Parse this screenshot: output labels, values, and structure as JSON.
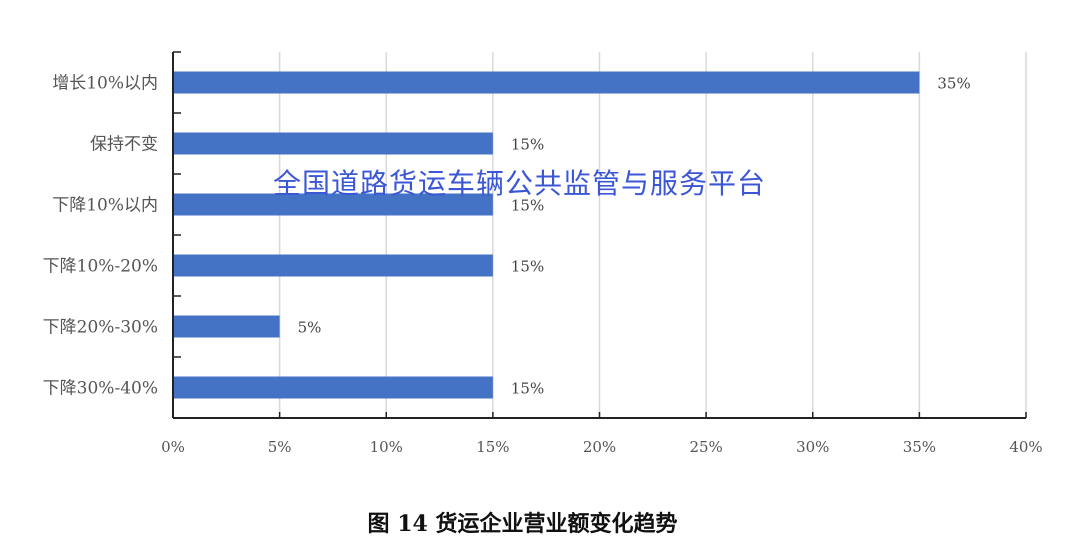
{
  "chart_data": {
    "type": "bar",
    "orientation": "horizontal",
    "categories": [
      "增长10%以内",
      "保持不变",
      "下降10%以内",
      "下降10%-20%",
      "下降20%-30%",
      "下降30%-40%"
    ],
    "values": [
      35,
      15,
      15,
      15,
      5,
      15
    ],
    "data_labels": [
      "35%",
      "15%",
      "15%",
      "15%",
      "5%",
      "15%"
    ],
    "xlim": [
      0,
      40
    ],
    "x_ticks": [
      0,
      5,
      10,
      15,
      20,
      25,
      30,
      35,
      40
    ],
    "x_tick_labels": [
      "0%",
      "5%",
      "10%",
      "15%",
      "20%",
      "25%",
      "30%",
      "35%",
      "40%"
    ],
    "grid": "vertical",
    "bar_color": "#4472c4",
    "title": "图 14 货运企业营业额变化趋势"
  },
  "watermark": "全国道路货运车辆公共监管与服务平台",
  "watermark_color": "#3b57d6"
}
